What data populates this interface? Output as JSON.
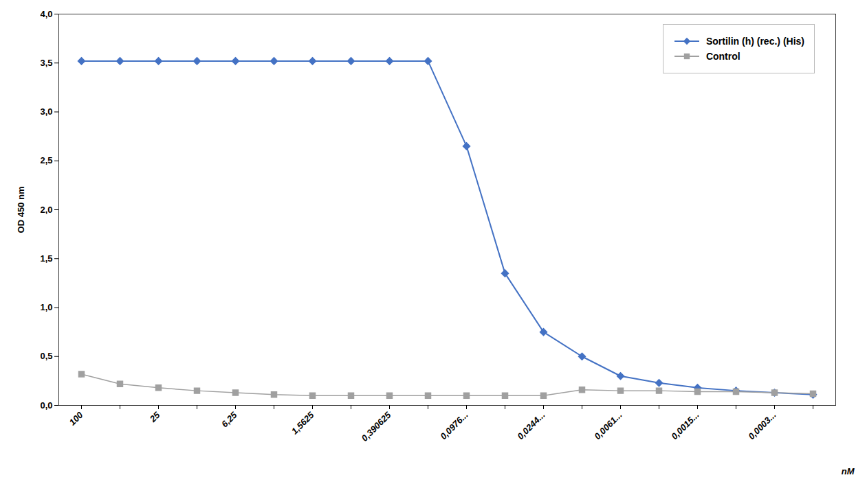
{
  "chart_data": {
    "type": "line",
    "xlabel": "nM",
    "ylabel": "OD 450 nm",
    "categories": [
      "100",
      null,
      "25",
      null,
      "6,25",
      null,
      "1,5625",
      null,
      "0,390625",
      null,
      "0,0976...",
      null,
      "0,0244...",
      null,
      "0,0061...",
      null,
      "0,0015...",
      null,
      "0,0003...",
      null
    ],
    "series": [
      {
        "name": "Sortilin (h) (rec.) (His)",
        "color": "#4472C4",
        "marker": "diamond",
        "values": [
          3.52,
          3.52,
          3.52,
          3.52,
          3.52,
          3.52,
          3.52,
          3.52,
          3.52,
          3.52,
          2.65,
          1.35,
          0.75,
          0.5,
          0.3,
          0.23,
          0.18,
          0.15,
          0.13,
          0.11
        ]
      },
      {
        "name": "Control",
        "color": "#A0A0A0",
        "marker": "square",
        "values": [
          0.32,
          0.22,
          0.18,
          0.15,
          0.13,
          0.11,
          0.1,
          0.1,
          0.1,
          0.1,
          0.1,
          0.1,
          0.1,
          0.16,
          0.15,
          0.15,
          0.14,
          0.14,
          0.13,
          0.12
        ]
      }
    ],
    "ylim": [
      0.0,
      4.0
    ],
    "yticks": [
      {
        "value": 0.0,
        "label": "0,0"
      },
      {
        "value": 0.5,
        "label": "0,5"
      },
      {
        "value": 1.0,
        "label": "1,0"
      },
      {
        "value": 1.5,
        "label": "1,5"
      },
      {
        "value": 2.0,
        "label": "2,0"
      },
      {
        "value": 2.5,
        "label": "2,5"
      },
      {
        "value": 3.0,
        "label": "3,0"
      },
      {
        "value": 3.5,
        "label": "3,5"
      },
      {
        "value": 4.0,
        "label": "4,0"
      }
    ],
    "legend": "upper right",
    "grid": false
  }
}
